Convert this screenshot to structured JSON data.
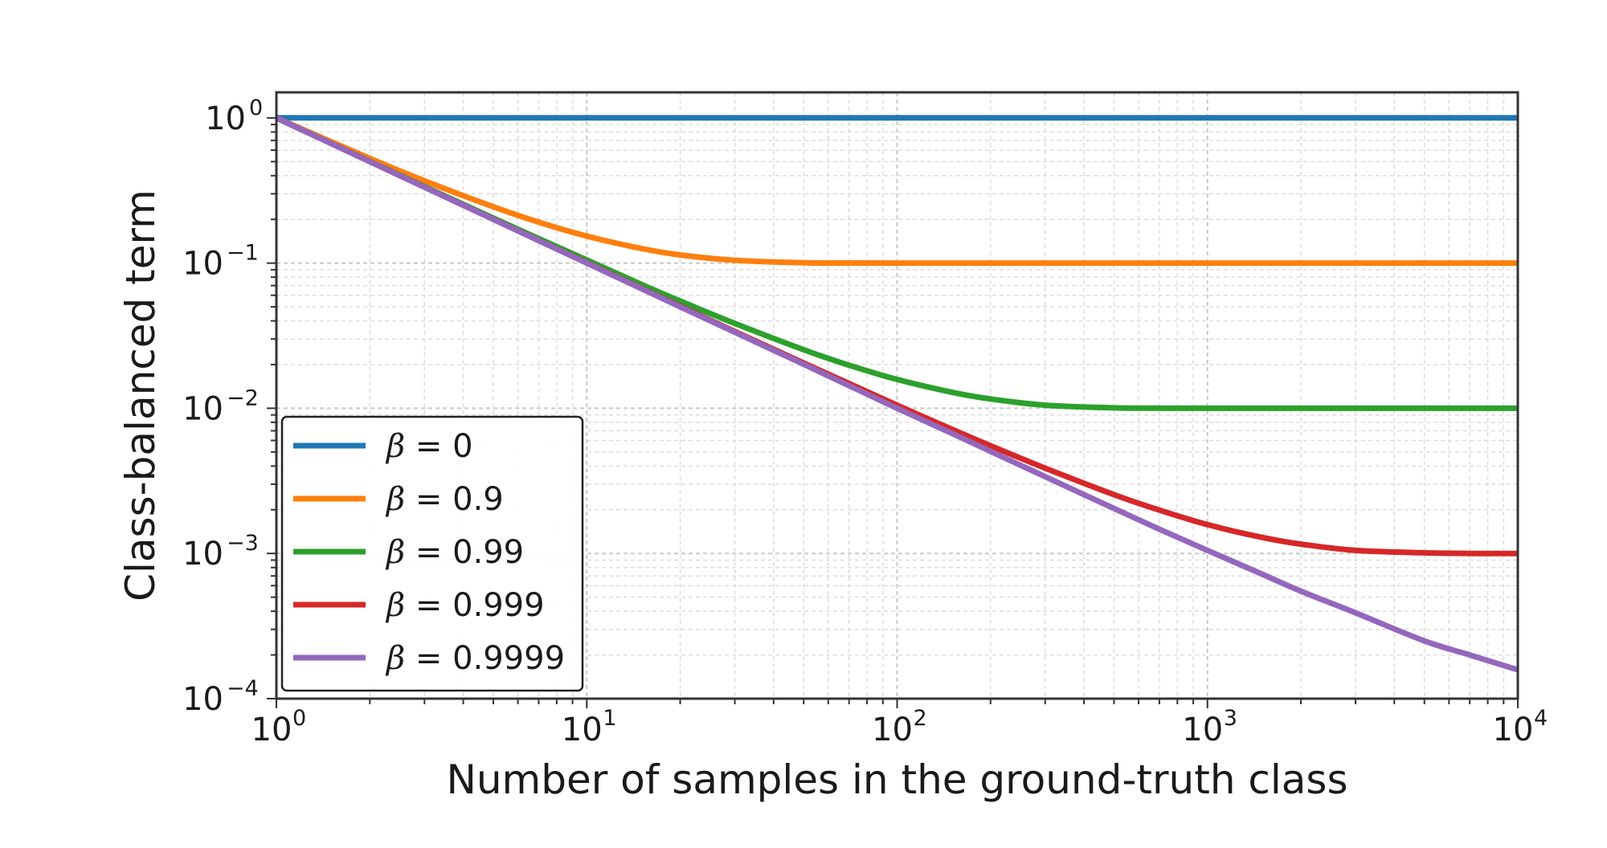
{
  "chart_data": {
    "type": "line",
    "xlabel": "Number of samples in the ground-truth class",
    "ylabel": "Class-balanced term",
    "xscale": "log",
    "yscale": "log",
    "xlim": [
      1,
      10000
    ],
    "ylim": [
      0.0001,
      1.5
    ],
    "grid": true,
    "legend_position": "lower-left",
    "x_ticks": [
      {
        "value": 1,
        "base": "10",
        "exp": "0"
      },
      {
        "value": 10,
        "base": "10",
        "exp": "1"
      },
      {
        "value": 100,
        "base": "10",
        "exp": "2"
      },
      {
        "value": 1000,
        "base": "10",
        "exp": "3"
      },
      {
        "value": 10000,
        "base": "10",
        "exp": "4"
      }
    ],
    "y_ticks": [
      {
        "value": 1,
        "base": "10",
        "exp": "0"
      },
      {
        "value": 0.1,
        "base": "10",
        "exp": "−1"
      },
      {
        "value": 0.01,
        "base": "10",
        "exp": "−2"
      },
      {
        "value": 0.001,
        "base": "10",
        "exp": "−3"
      },
      {
        "value": 0.0001,
        "base": "10",
        "exp": "−4"
      }
    ],
    "x": [
      1,
      2,
      3,
      5,
      7,
      10,
      15,
      20,
      30,
      50,
      70,
      100,
      150,
      200,
      300,
      500,
      700,
      1000,
      1500,
      2000,
      3000,
      5000,
      7000,
      10000
    ],
    "series": [
      {
        "name": "β = 0",
        "symbol": "β",
        "value_text": " = 0",
        "color": "#1f77b4",
        "values": [
          1,
          1,
          1,
          1,
          1,
          1,
          1,
          1,
          1,
          1,
          1,
          1,
          1,
          1,
          1,
          1,
          1,
          1,
          1,
          1,
          1,
          1,
          1,
          1
        ]
      },
      {
        "name": "β = 0.9",
        "symbol": "β",
        "value_text": " = 0.9",
        "color": "#ff7f0e",
        "values": [
          1,
          0.5263,
          0.369,
          0.2442,
          0.1915,
          0.1535,
          0.126,
          0.1138,
          0.1046,
          0.1005,
          0.1001,
          0.1,
          0.1,
          0.1,
          0.1,
          0.1,
          0.1,
          0.1,
          0.1,
          0.1,
          0.1,
          0.1,
          0.1,
          0.1
        ]
      },
      {
        "name": "β = 0.99",
        "symbol": "β",
        "value_text": " = 0.99",
        "color": "#2ca02c",
        "values": [
          1,
          0.5025,
          0.3367,
          0.2041,
          0.1475,
          0.1051,
          0.0713,
          0.0548,
          0.0384,
          0.0253,
          0.0198,
          0.0158,
          0.0129,
          0.0116,
          0.0105,
          0.01007,
          0.01001,
          0.01,
          0.01,
          0.01,
          0.01,
          0.01,
          0.01,
          0.01
        ]
      },
      {
        "name": "β = 0.999",
        "symbol": "β",
        "value_text": " = 0.999",
        "color": "#d62728",
        "values": [
          1,
          0.5003,
          0.3337,
          0.2004,
          0.1433,
          0.1005,
          0.0671,
          0.0505,
          0.0338,
          0.0205,
          0.0148,
          0.0105,
          0.00717,
          0.00552,
          0.00387,
          0.00254,
          0.00199,
          0.00158,
          0.00129,
          0.00116,
          0.00105,
          0.00101,
          0.001,
          0.001
        ]
      },
      {
        "name": "β = 0.9999",
        "symbol": "β",
        "value_text": " = 0.9999",
        "color": "#9467bd",
        "values": [
          1,
          0.5,
          0.3334,
          0.2,
          0.1429,
          0.1,
          0.0667,
          0.05,
          0.0334,
          0.0201,
          0.0143,
          0.01,
          0.00672,
          0.00505,
          0.00338,
          0.00204,
          0.00147,
          0.00105,
          0.00072,
          0.00055,
          0.00039,
          0.00025,
          0.0002,
          0.000158
        ]
      }
    ]
  }
}
